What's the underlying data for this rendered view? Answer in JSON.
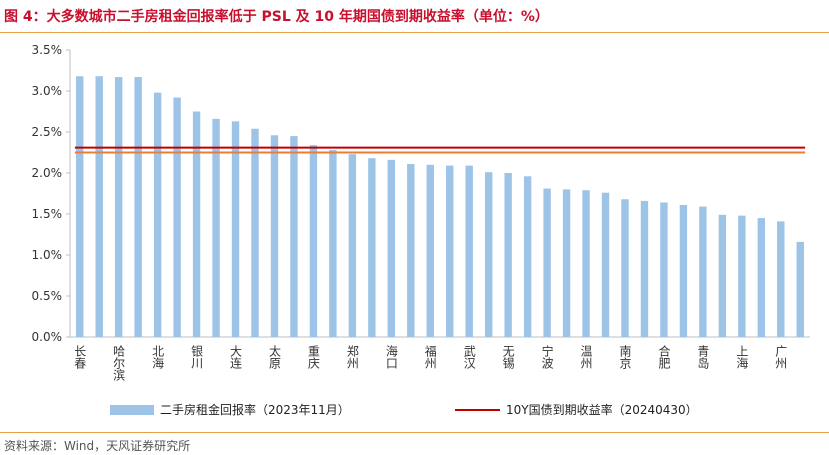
{
  "header": {
    "title": "图 4：大多数城市二手房租金回报率低于 PSL 及 10 年期国债到期收益率（单位：%）"
  },
  "footer": {
    "source": "资料来源：Wind，天风证券研究所"
  },
  "colors": {
    "bar": "#9dc3e6",
    "line": "#c00000",
    "line2": "#ed7d31",
    "axis": "#bfbfbf"
  },
  "chart_data": {
    "type": "bar",
    "categories": [
      "长春",
      "",
      "哈尔滨",
      "",
      "北海",
      "",
      "银川",
      "",
      "大连",
      "",
      "太原",
      "",
      "重庆",
      "",
      "郑州",
      "",
      "海口",
      "",
      "福州",
      "",
      "武汉",
      "",
      "无锡",
      "",
      "宁波",
      "",
      "温州",
      "",
      "南京",
      "",
      "合肥",
      "",
      "青岛",
      "",
      "上海",
      "",
      "广州",
      ""
    ],
    "series": [
      {
        "name": "二手房租金回报率（2023年11月）",
        "type": "bar",
        "values": [
          3.18,
          3.18,
          3.17,
          3.17,
          2.98,
          2.92,
          2.75,
          2.66,
          2.63,
          2.54,
          2.46,
          2.45,
          2.34,
          2.28,
          2.23,
          2.18,
          2.16,
          2.11,
          2.1,
          2.09,
          2.09,
          2.01,
          2.0,
          1.96,
          1.81,
          1.8,
          1.79,
          1.76,
          1.68,
          1.66,
          1.64,
          1.61,
          1.59,
          1.49,
          1.48,
          1.45,
          1.41,
          1.16
        ]
      },
      {
        "name": "10Y国债到期收益率（20240430）",
        "type": "line",
        "value": 2.31
      },
      {
        "type": "line",
        "value": 2.25
      }
    ],
    "ylim": [
      0,
      3.5
    ],
    "yticks": [
      "0.0%",
      "0.5%",
      "1.0%",
      "1.5%",
      "2.0%",
      "2.5%",
      "3.0%",
      "3.5%"
    ],
    "ytick_values": [
      0,
      0.5,
      1.0,
      1.5,
      2.0,
      2.5,
      3.0,
      3.5
    ],
    "grid": false,
    "legend_position": "bottom"
  }
}
